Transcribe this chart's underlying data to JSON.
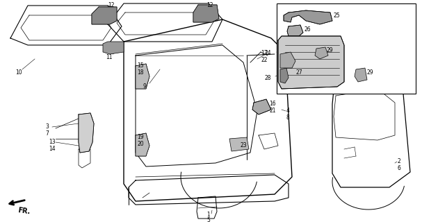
{
  "bg_color": "#ffffff",
  "line_color": "#000000",
  "fig_width": 6.07,
  "fig_height": 3.2,
  "dpi": 100
}
